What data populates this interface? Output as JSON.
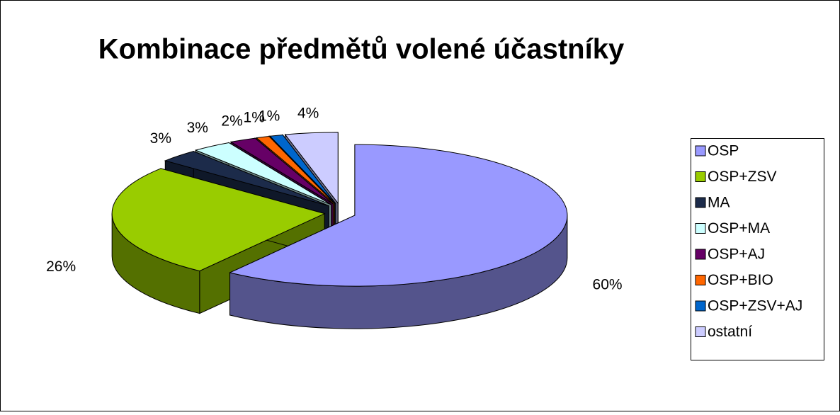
{
  "chart_data": {
    "type": "pie3d",
    "title": "Kombinace předmětů volené účastníky",
    "categories": [
      "OSP",
      "OSP+ZSV",
      "MA",
      "OSP+MA",
      "OSP+AJ",
      "OSP+BIO",
      "OSP+ZSV+AJ",
      "ostatní"
    ],
    "values": [
      60,
      26,
      3,
      3,
      2,
      1,
      1,
      4
    ],
    "value_labels": [
      "60%",
      "26%",
      "3%",
      "3%",
      "2%",
      "1%",
      "1%",
      "4%"
    ],
    "colors": [
      "#9999ff",
      "#99cc00",
      "#1c2b4a",
      "#ccffff",
      "#660066",
      "#ff6600",
      "#0066cc",
      "#ccccff"
    ],
    "legend": "right"
  }
}
